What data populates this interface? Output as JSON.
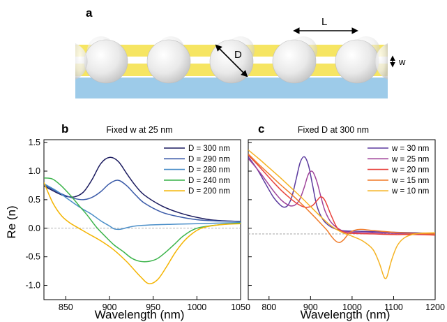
{
  "schematic": {
    "panel_label": "a",
    "length_label": "L",
    "diameter_label": "D",
    "thickness_label": "w"
  },
  "chart_data": [
    {
      "type": "line",
      "panel_label": "b",
      "title": "Fixed w at 25 nm",
      "xlabel": "Wavelength (nm)",
      "ylabel": "Re (n)",
      "xlim": [
        825,
        1050
      ],
      "ylim": [
        -1.25,
        1.55
      ],
      "xticks": [
        850,
        900,
        950,
        1000,
        1050
      ],
      "yticks": [
        -1.0,
        -0.5,
        0.0,
        0.5,
        1.0,
        1.5
      ],
      "ytick_labels": [
        "-1.0",
        "-0.5",
        "0.0",
        "0.5",
        "1.0",
        "1.5"
      ],
      "reference_line_y": 0,
      "grid": false,
      "legend_position": "top-right",
      "series": [
        {
          "name": "D = 300 nm",
          "color": "#1a1a5e",
          "x": [
            825,
            840,
            850,
            860,
            870,
            880,
            890,
            900,
            910,
            920,
            930,
            940,
            960,
            980,
            1000,
            1020,
            1050
          ],
          "y": [
            0.74,
            0.62,
            0.56,
            0.55,
            0.63,
            0.85,
            1.13,
            1.24,
            1.17,
            0.95,
            0.74,
            0.58,
            0.39,
            0.27,
            0.19,
            0.14,
            0.12
          ]
        },
        {
          "name": "D = 290 nm",
          "color": "#3a5aa8",
          "x": [
            825,
            840,
            850,
            860,
            870,
            880,
            890,
            900,
            910,
            920,
            930,
            940,
            960,
            980,
            1000,
            1020,
            1050
          ],
          "y": [
            0.76,
            0.64,
            0.57,
            0.52,
            0.5,
            0.54,
            0.64,
            0.78,
            0.84,
            0.74,
            0.58,
            0.44,
            0.28,
            0.2,
            0.15,
            0.13,
            0.12
          ]
        },
        {
          "name": "D = 280 nm",
          "color": "#4a8ec8",
          "x": [
            825,
            840,
            850,
            860,
            870,
            880,
            890,
            900,
            905,
            910,
            915,
            920,
            930,
            950,
            975,
            1000,
            1025,
            1050
          ],
          "y": [
            0.78,
            0.65,
            0.54,
            0.43,
            0.33,
            0.24,
            0.13,
            0.04,
            -0.01,
            -0.02,
            -0.01,
            0.01,
            0.04,
            0.06,
            0.07,
            0.08,
            0.09,
            0.1
          ]
        },
        {
          "name": "D = 240 nm",
          "color": "#3cb44b",
          "x": [
            825,
            835,
            845,
            855,
            865,
            875,
            885,
            895,
            905,
            915,
            925,
            935,
            945,
            955,
            965,
            975,
            985,
            1000,
            1025,
            1050
          ],
          "y": [
            0.88,
            0.86,
            0.74,
            0.58,
            0.4,
            0.22,
            0.02,
            -0.14,
            -0.29,
            -0.4,
            -0.52,
            -0.58,
            -0.58,
            -0.53,
            -0.41,
            -0.27,
            -0.13,
            0.0,
            0.06,
            0.09
          ]
        },
        {
          "name": "D = 200 nm",
          "color": "#f4b400",
          "x": [
            825,
            835,
            845,
            855,
            865,
            875,
            890,
            905,
            920,
            935,
            945,
            955,
            965,
            975,
            985,
            995,
            1005,
            1020,
            1035,
            1050
          ],
          "y": [
            0.8,
            0.45,
            0.22,
            0.09,
            0.0,
            -0.09,
            -0.22,
            -0.38,
            -0.59,
            -0.84,
            -0.97,
            -0.9,
            -0.68,
            -0.43,
            -0.23,
            -0.09,
            0.0,
            0.05,
            0.07,
            0.08
          ]
        }
      ]
    },
    {
      "type": "line",
      "panel_label": "c",
      "title": "Fixed D at 300 nm",
      "xlabel": "Wavelength (nm)",
      "ylabel": "",
      "xlim": [
        750,
        1200
      ],
      "ylim": [
        -1.25,
        1.55
      ],
      "xticks": [
        800,
        900,
        1000,
        1100,
        1200
      ],
      "yticks": [
        -1.0,
        -0.5,
        0.0,
        0.5,
        1.0,
        1.5
      ],
      "ytick_labels": [
        "",
        "",
        "",
        "",
        "",
        ""
      ],
      "reference_line_y": -0.1,
      "grid": false,
      "legend_position": "top-right",
      "series": [
        {
          "name": "w = 30 nm",
          "color": "#5b3a9e",
          "x": [
            750,
            770,
            790,
            810,
            825,
            835,
            845,
            855,
            865,
            875,
            885,
            895,
            905,
            915,
            930,
            950,
            975,
            1000,
            1050,
            1100,
            1150,
            1200
          ],
          "y": [
            1.25,
            1.05,
            0.8,
            0.55,
            0.42,
            0.37,
            0.4,
            0.55,
            0.85,
            1.15,
            1.25,
            1.1,
            0.75,
            0.4,
            0.15,
            0.02,
            -0.04,
            -0.05,
            -0.06,
            -0.07,
            -0.08,
            -0.09
          ]
        },
        {
          "name": "w = 25 nm",
          "color": "#a0449a",
          "x": [
            750,
            770,
            790,
            810,
            830,
            845,
            855,
            865,
            875,
            885,
            895,
            905,
            915,
            925,
            935,
            950,
            975,
            1000,
            1050,
            1100,
            1150,
            1200
          ],
          "y": [
            1.22,
            1.05,
            0.86,
            0.66,
            0.49,
            0.41,
            0.39,
            0.42,
            0.52,
            0.72,
            0.95,
            0.99,
            0.82,
            0.55,
            0.3,
            0.1,
            -0.04,
            -0.07,
            -0.08,
            -0.09,
            -0.1,
            -0.11
          ]
        },
        {
          "name": "w = 20 nm",
          "color": "#e8413c",
          "x": [
            750,
            770,
            790,
            810,
            830,
            850,
            870,
            885,
            895,
            905,
            915,
            925,
            935,
            950,
            965,
            985,
            1000,
            1050,
            1100,
            1150,
            1200
          ],
          "y": [
            1.28,
            1.13,
            0.97,
            0.81,
            0.66,
            0.53,
            0.42,
            0.37,
            0.37,
            0.4,
            0.48,
            0.55,
            0.48,
            0.22,
            0.0,
            -0.08,
            -0.09,
            -0.1,
            -0.11,
            -0.11,
            -0.12
          ]
        },
        {
          "name": "w = 15 nm",
          "color": "#f07b2a",
          "x": [
            750,
            775,
            800,
            825,
            850,
            875,
            900,
            925,
            940,
            950,
            960,
            970,
            980,
            990,
            1000,
            1020,
            1050,
            1100,
            1150,
            1200
          ],
          "y": [
            1.3,
            1.12,
            0.95,
            0.78,
            0.62,
            0.45,
            0.27,
            0.08,
            -0.04,
            -0.14,
            -0.22,
            -0.25,
            -0.2,
            -0.11,
            -0.05,
            -0.02,
            -0.04,
            -0.07,
            -0.09,
            -0.1
          ]
        },
        {
          "name": "w = 10 nm",
          "color": "#f5b323",
          "x": [
            750,
            775,
            800,
            825,
            850,
            875,
            900,
            925,
            950,
            975,
            1000,
            1025,
            1050,
            1065,
            1075,
            1080,
            1085,
            1095,
            1110,
            1130,
            1160,
            1200
          ],
          "y": [
            1.37,
            1.22,
            1.06,
            0.9,
            0.73,
            0.56,
            0.38,
            0.2,
            0.04,
            -0.07,
            -0.14,
            -0.22,
            -0.37,
            -0.6,
            -0.82,
            -0.88,
            -0.83,
            -0.56,
            -0.29,
            -0.15,
            -0.09,
            -0.08
          ]
        }
      ]
    }
  ]
}
